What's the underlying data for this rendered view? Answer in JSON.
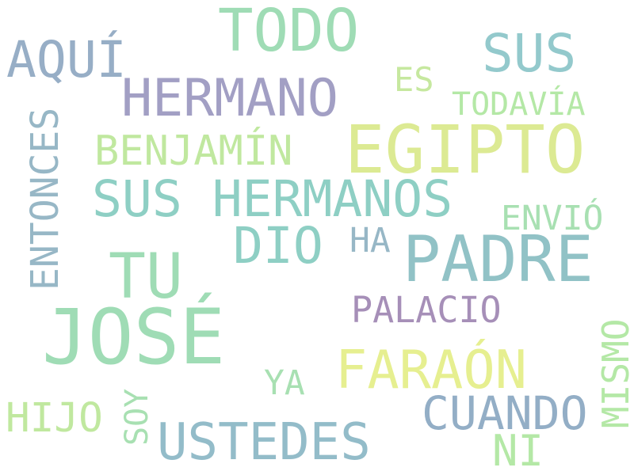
{
  "words": [
    {
      "text": "JOSÉ",
      "color": "#9fdcb5"
    },
    {
      "text": "EGIPTO",
      "color": "#dcea93"
    },
    {
      "text": "TODO",
      "color": "#9fdcb5"
    },
    {
      "text": "PADRE",
      "color": "#91c2c6"
    },
    {
      "text": "SUS HERMANOS",
      "color": "#8ecfc4"
    },
    {
      "text": "TU",
      "color": "#9fdcb5"
    },
    {
      "text": "FARAÓN",
      "color": "#e6ef90"
    },
    {
      "text": "USTEDES",
      "color": "#93bcc9"
    },
    {
      "text": "HERMANO",
      "color": "#a29fc4"
    },
    {
      "text": "SUS",
      "color": "#93c9cc"
    },
    {
      "text": "AQUÍ",
      "color": "#97aec6"
    },
    {
      "text": "DIO",
      "color": "#8ecfc4"
    },
    {
      "text": "BENJAMÍN",
      "color": "#c0e89f"
    },
    {
      "text": "CUANDO",
      "color": "#93aec6"
    },
    {
      "text": "ENTONCES",
      "color": "#97b7c6"
    },
    {
      "text": "PALACIO",
      "color": "#a68fb8"
    },
    {
      "text": "HIJO",
      "color": "#c0e89f"
    },
    {
      "text": "TODAVÍA",
      "color": "#b4e8a6"
    },
    {
      "text": "ENVIÓ",
      "color": "#a8e0b2"
    },
    {
      "text": "MISMO",
      "color": "#b4e8a6"
    },
    {
      "text": "HA",
      "color": "#97b7c6"
    },
    {
      "text": "ES",
      "color": "#c6e89f"
    },
    {
      "text": "YA",
      "color": "#a8e0b2"
    },
    {
      "text": "SOY",
      "color": "#a8e0b2"
    },
    {
      "text": "NI",
      "color": "#b4e8a6"
    }
  ]
}
